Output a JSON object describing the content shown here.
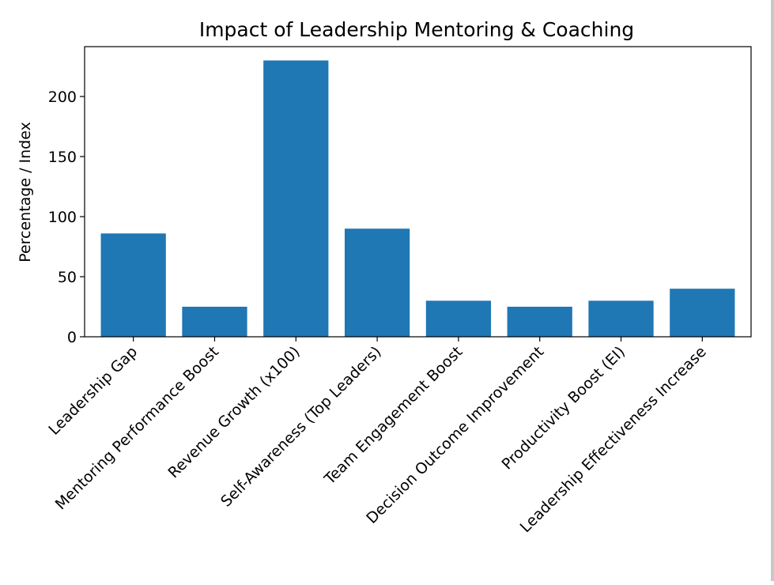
{
  "chart_data": {
    "type": "bar",
    "title": "Impact of Leadership Mentoring & Coaching",
    "xlabel": "",
    "ylabel": "Percentage / Index",
    "categories": [
      "Leadership Gap",
      "Mentoring Performance Boost",
      "Revenue Growth (x100)",
      "Self-Awareness (Top Leaders)",
      "Team Engagement Boost",
      "Decision Outcome Improvement",
      "Productivity Boost (EI)",
      "Leadership Effectiveness Increase"
    ],
    "values": [
      86,
      25,
      230,
      90,
      30,
      25,
      30,
      40
    ],
    "ylim": [
      0,
      241.5
    ],
    "yticks": [
      0,
      50,
      100,
      150,
      200
    ],
    "bar_color": "#1f77b4",
    "grid": false
  }
}
